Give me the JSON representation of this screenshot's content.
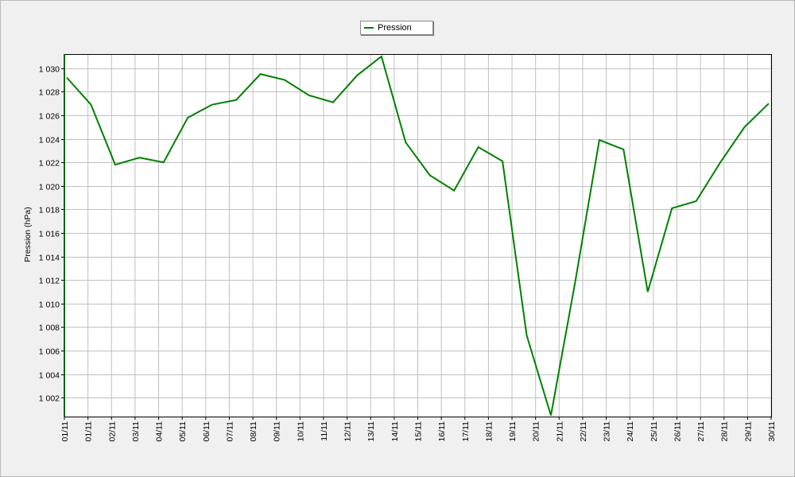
{
  "chart_data": {
    "type": "line",
    "title": "",
    "xlabel": "",
    "ylabel": "Pression (hPa)",
    "ylim": [
      1000.4,
      1031.2
    ],
    "y_ticks": [
      "1 002",
      "1 004",
      "1 006",
      "1 008",
      "1 010",
      "1 012",
      "1 014",
      "1 016",
      "1 018",
      "1 020",
      "1 022",
      "1 024",
      "1 026",
      "1 028",
      "1 030"
    ],
    "y_tick_values": [
      1002,
      1004,
      1006,
      1008,
      1010,
      1012,
      1014,
      1016,
      1018,
      1020,
      1022,
      1024,
      1026,
      1028,
      1030
    ],
    "x_tick_labels": [
      "01/11",
      "01/11",
      "02/11",
      "03/11",
      "04/11",
      "05/11",
      "06/11",
      "07/11",
      "08/11",
      "09/11",
      "10/11",
      "11/11",
      "12/11",
      "13/11",
      "14/11",
      "15/11",
      "16/11",
      "17/11",
      "18/11",
      "19/11",
      "20/11",
      "21/11",
      "22/11",
      "23/11",
      "24/11",
      "25/11",
      "26/11",
      "27/11",
      "28/11",
      "29/11",
      "30/11"
    ],
    "grid": true,
    "legend_position": "top-center",
    "series": [
      {
        "name": "Pression",
        "color": "#008000",
        "values": [
          1029.2,
          1026.9,
          1021.8,
          1022.4,
          1022.0,
          1025.8,
          1026.9,
          1027.3,
          1029.5,
          1029.0,
          1027.7,
          1027.1,
          1029.4,
          1031.0,
          1023.7,
          1020.9,
          1019.6,
          1023.3,
          1022.1,
          1007.3,
          1000.5,
          1011.8,
          1023.9,
          1023.1,
          1011.0,
          1018.1,
          1018.7,
          1022.0,
          1025.0,
          1027.0
        ]
      }
    ]
  },
  "legend": {
    "series_label": "Pression",
    "extra_mark": "—"
  }
}
